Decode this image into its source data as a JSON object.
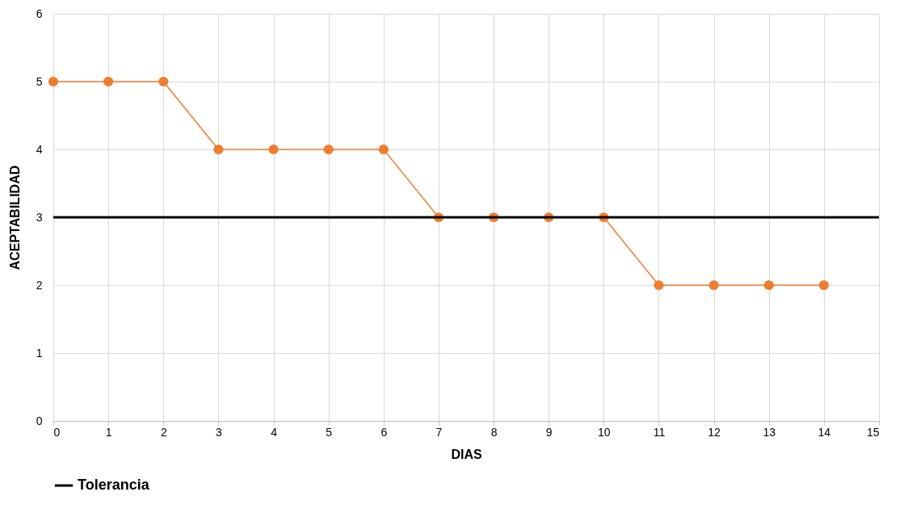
{
  "chart_data": {
    "type": "line",
    "xlabel": "DIAS",
    "ylabel": "ACEPTABILIDAD",
    "x": [
      0,
      1,
      2,
      3,
      4,
      5,
      6,
      7,
      8,
      9,
      10,
      11,
      12,
      13,
      14
    ],
    "series": [
      {
        "color": "#ed7d31",
        "values": [
          5,
          5,
          5,
          4,
          4,
          4,
          4,
          3,
          3,
          3,
          3,
          2,
          2,
          2,
          2
        ]
      }
    ],
    "xlim": [
      0,
      15
    ],
    "xticks": [
      0,
      1,
      2,
      3,
      4,
      5,
      6,
      7,
      8,
      9,
      10,
      11,
      12,
      13,
      14,
      15
    ],
    "ylim": [
      0,
      6
    ],
    "yticks": [
      0,
      1,
      2,
      3,
      4,
      5,
      6
    ],
    "ref_lines": [
      {
        "axis": "y",
        "value": 3,
        "label": "Tolerancia",
        "color": "#000000",
        "line_style": "solid"
      }
    ],
    "grid": true,
    "legend": "bottom",
    "marker": "circle",
    "line_style": "solid"
  }
}
